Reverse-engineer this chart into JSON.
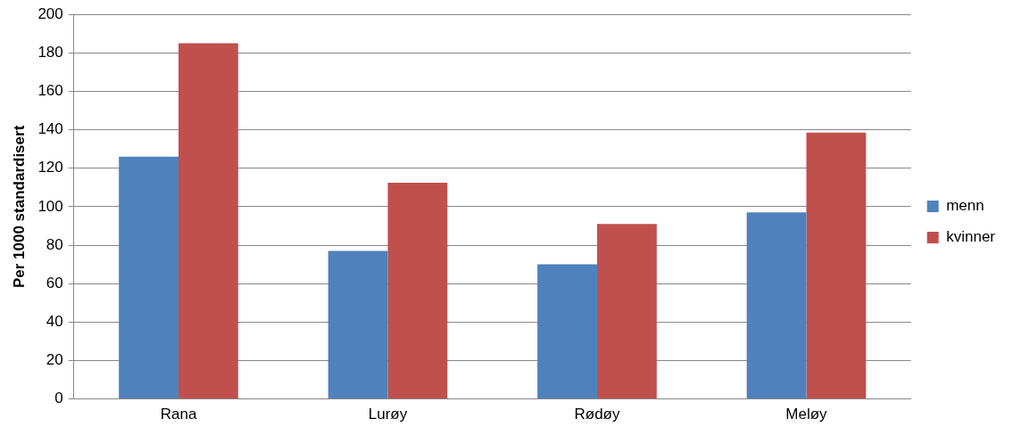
{
  "chart_data": {
    "type": "bar",
    "ylabel": "Per 1000 standardisert",
    "categories": [
      "Rana",
      "Lurøy",
      "Rødøy",
      "Meløy"
    ],
    "series": [
      {
        "name": "menn",
        "color": "#4f81bd",
        "values": [
          126,
          77,
          70,
          97
        ]
      },
      {
        "name": "kvinner",
        "color": "#c0504d",
        "values": [
          185,
          112.5,
          91,
          138.5
        ]
      }
    ],
    "ylim": [
      0,
      200
    ],
    "yticks": [
      0,
      20,
      40,
      60,
      80,
      100,
      120,
      140,
      160,
      180,
      200
    ],
    "grid": "y",
    "legend": "right"
  }
}
